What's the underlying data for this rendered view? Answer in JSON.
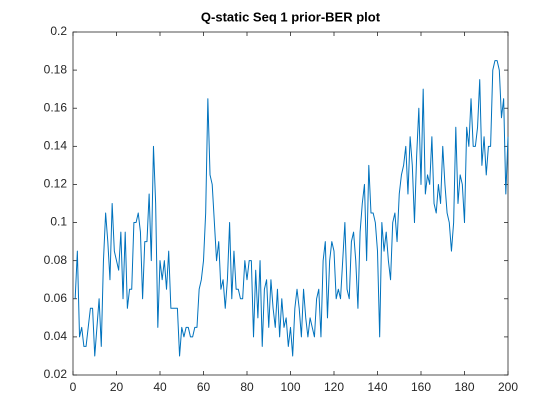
{
  "chart_data": {
    "type": "line",
    "title": "Q-static Seq 1 prior-BER plot",
    "x": [
      1,
      2,
      3,
      4,
      5,
      6,
      7,
      8,
      9,
      10,
      11,
      12,
      13,
      14,
      15,
      16,
      17,
      18,
      19,
      20,
      21,
      22,
      23,
      24,
      25,
      26,
      27,
      28,
      29,
      30,
      31,
      32,
      33,
      34,
      35,
      36,
      37,
      38,
      39,
      40,
      41,
      42,
      43,
      44,
      45,
      46,
      47,
      48,
      49,
      50,
      51,
      52,
      53,
      54,
      55,
      56,
      57,
      58,
      59,
      60,
      61,
      62,
      63,
      64,
      65,
      66,
      67,
      68,
      69,
      70,
      71,
      72,
      73,
      74,
      75,
      76,
      77,
      78,
      79,
      80,
      81,
      82,
      83,
      84,
      85,
      86,
      87,
      88,
      89,
      90,
      91,
      92,
      93,
      94,
      95,
      96,
      97,
      98,
      99,
      100,
      101,
      102,
      103,
      104,
      105,
      106,
      107,
      108,
      109,
      110,
      111,
      112,
      113,
      114,
      115,
      116,
      117,
      118,
      119,
      120,
      121,
      122,
      123,
      124,
      125,
      126,
      127,
      128,
      129,
      130,
      131,
      132,
      133,
      134,
      135,
      136,
      137,
      138,
      139,
      140,
      141,
      142,
      143,
      144,
      145,
      146,
      147,
      148,
      149,
      150,
      151,
      152,
      153,
      154,
      155,
      156,
      157,
      158,
      159,
      160,
      161,
      162,
      163,
      164,
      165,
      166,
      167,
      168,
      169,
      170,
      171,
      172,
      173,
      174,
      175,
      176,
      177,
      178,
      179,
      180,
      181,
      182,
      183,
      184,
      185,
      186,
      187,
      188,
      189,
      190,
      191,
      192,
      193,
      194,
      195,
      196,
      197,
      198,
      199,
      200
    ],
    "values": [
      0.06,
      0.085,
      0.04,
      0.045,
      0.035,
      0.035,
      0.045,
      0.055,
      0.055,
      0.03,
      0.045,
      0.06,
      0.035,
      0.08,
      0.105,
      0.09,
      0.07,
      0.11,
      0.085,
      0.08,
      0.075,
      0.095,
      0.06,
      0.095,
      0.055,
      0.065,
      0.065,
      0.1,
      0.1,
      0.105,
      0.095,
      0.06,
      0.09,
      0.09,
      0.115,
      0.08,
      0.14,
      0.11,
      0.045,
      0.08,
      0.07,
      0.08,
      0.065,
      0.085,
      0.055,
      0.055,
      0.055,
      0.055,
      0.03,
      0.045,
      0.04,
      0.045,
      0.045,
      0.04,
      0.04,
      0.045,
      0.045,
      0.065,
      0.07,
      0.08,
      0.105,
      0.165,
      0.125,
      0.12,
      0.1,
      0.08,
      0.09,
      0.065,
      0.07,
      0.055,
      0.07,
      0.1,
      0.06,
      0.085,
      0.065,
      0.065,
      0.06,
      0.06,
      0.08,
      0.07,
      0.08,
      0.08,
      0.04,
      0.075,
      0.05,
      0.08,
      0.035,
      0.065,
      0.07,
      0.045,
      0.07,
      0.055,
      0.045,
      0.065,
      0.04,
      0.06,
      0.045,
      0.05,
      0.035,
      0.045,
      0.03,
      0.055,
      0.065,
      0.055,
      0.04,
      0.065,
      0.05,
      0.04,
      0.05,
      0.045,
      0.04,
      0.06,
      0.065,
      0.04,
      0.08,
      0.09,
      0.05,
      0.08,
      0.09,
      0.085,
      0.06,
      0.065,
      0.06,
      0.08,
      0.1,
      0.065,
      0.06,
      0.09,
      0.095,
      0.08,
      0.055,
      0.095,
      0.11,
      0.12,
      0.08,
      0.13,
      0.105,
      0.105,
      0.1,
      0.085,
      0.04,
      0.1,
      0.085,
      0.095,
      0.08,
      0.07,
      0.1,
      0.105,
      0.09,
      0.115,
      0.125,
      0.13,
      0.14,
      0.115,
      0.145,
      0.13,
      0.1,
      0.135,
      0.16,
      0.12,
      0.17,
      0.115,
      0.125,
      0.12,
      0.145,
      0.11,
      0.105,
      0.12,
      0.11,
      0.14,
      0.12,
      0.105,
      0.1,
      0.085,
      0.1,
      0.15,
      0.11,
      0.125,
      0.12,
      0.1,
      0.15,
      0.14,
      0.165,
      0.14,
      0.14,
      0.15,
      0.175,
      0.13,
      0.145,
      0.125,
      0.14,
      0.14,
      0.18,
      0.185,
      0.185,
      0.18,
      0.155,
      0.165,
      0.115,
      0.145
    ],
    "color": "#0072bd",
    "xlim": [
      0,
      200
    ],
    "xticks": [
      0,
      20,
      40,
      60,
      80,
      100,
      120,
      140,
      160,
      180,
      200
    ],
    "ylim": [
      0.02,
      0.2
    ],
    "yticks": [
      0.02,
      0.04,
      0.06,
      0.08,
      0.1,
      0.12,
      0.14,
      0.16,
      0.18,
      0.2
    ],
    "grid": false
  }
}
